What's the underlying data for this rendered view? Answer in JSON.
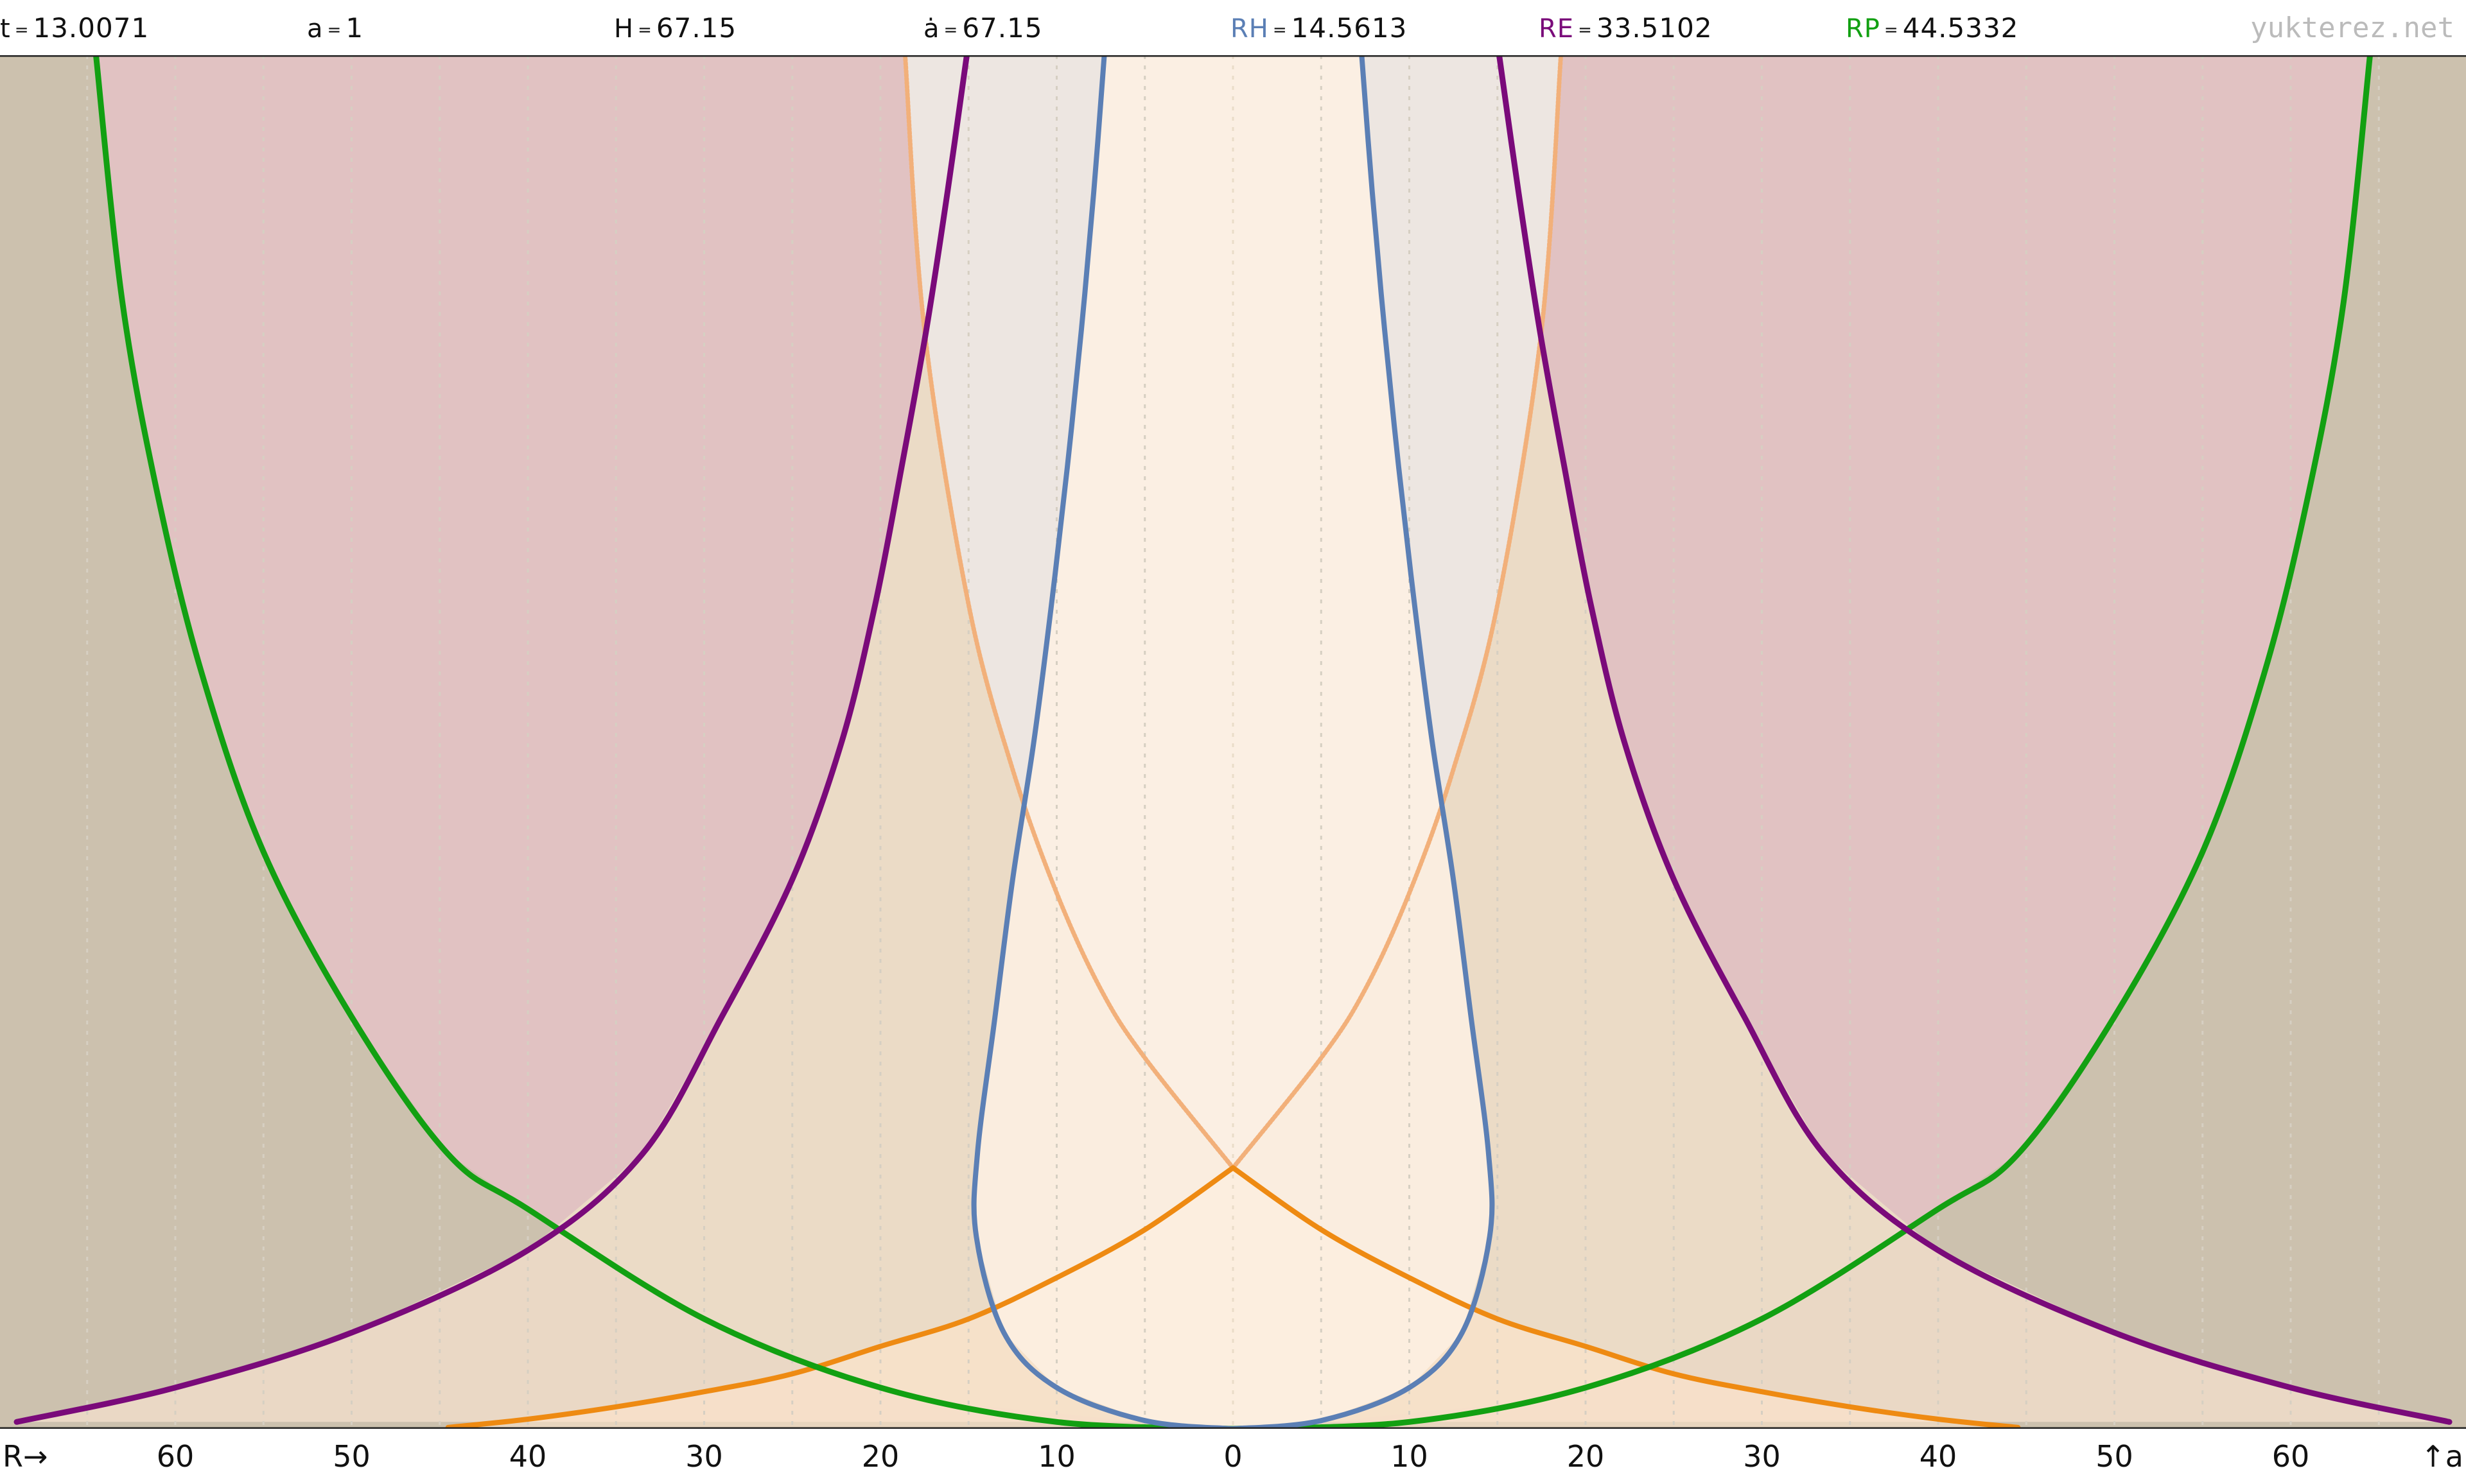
{
  "header": {
    "items": [
      {
        "label": "t",
        "value": "13.0071",
        "color": "#111111"
      },
      {
        "label": "a",
        "value": "1",
        "color": "#111111"
      },
      {
        "label": "H",
        "value": "67.15",
        "color": "#111111"
      },
      {
        "label": "ȧ",
        "value": "67.15",
        "color": "#111111"
      },
      {
        "label": "RH",
        "value": "14.5613",
        "color": "#5b7fb5"
      },
      {
        "label": "RE",
        "value": "33.5102",
        "color": "#7a0a7a"
      },
      {
        "label": "RP",
        "value": "44.5332",
        "color": "#12a012"
      }
    ],
    "eq_sign": "=",
    "site": "yukterez.net"
  },
  "axis": {
    "x_left_label": "R→",
    "y_label": "↑a",
    "ticks": [
      "60",
      "50",
      "40",
      "30",
      "20",
      "10",
      "0",
      "10",
      "20",
      "30",
      "40",
      "50",
      "60"
    ]
  },
  "chart_data": {
    "type": "line",
    "xlim": [
      -70,
      70
    ],
    "ylim": [
      0,
      1
    ],
    "grid": "vertical dotted every 5 units",
    "colors": {
      "hubble": "#5b7fb5",
      "event": "#7a0a7a",
      "particle": "#12a012",
      "lightcone": "#ee8a12",
      "lightcone_faint": "#f2b07a",
      "fill_outer": "#ccc1ae",
      "fill_event": "#e1c2c2",
      "fill_mid": "#eedcc9",
      "fill_lightcone": "#ffe5cc",
      "fill_inner": "#fdf0e3",
      "fill_green": "#d4d8b4",
      "fill_inner_gray": "#ede6e1"
    },
    "series": [
      {
        "key": "hubble",
        "points": [
          [
            0,
            0
          ],
          [
            5,
            0.006
          ],
          [
            10,
            0.03
          ],
          [
            13,
            0.07
          ],
          [
            14.56,
            0.14
          ],
          [
            14.5,
            0.2
          ],
          [
            13.5,
            0.3
          ],
          [
            12.5,
            0.4
          ],
          [
            11.3,
            0.5
          ],
          [
            10.3,
            0.6
          ],
          [
            9.4,
            0.7
          ],
          [
            8.6,
            0.8
          ],
          [
            7.9,
            0.9
          ],
          [
            7.3,
            1.0
          ]
        ]
      },
      {
        "key": "event",
        "points": [
          [
            69,
            0.005
          ],
          [
            60,
            0.03
          ],
          [
            50,
            0.07
          ],
          [
            40,
            0.13
          ],
          [
            33.51,
            0.2
          ],
          [
            29,
            0.3
          ],
          [
            25,
            0.4
          ],
          [
            22.2,
            0.5
          ],
          [
            20.3,
            0.6
          ],
          [
            18.8,
            0.7
          ],
          [
            17.4,
            0.8
          ],
          [
            16.2,
            0.9
          ],
          [
            15.1,
            1.0
          ]
        ]
      },
      {
        "key": "particle",
        "points": [
          [
            0,
            0
          ],
          [
            10,
            0.005
          ],
          [
            20,
            0.03
          ],
          [
            30,
            0.08
          ],
          [
            40,
            0.16
          ],
          [
            44.53,
            0.2
          ],
          [
            50,
            0.3
          ],
          [
            55,
            0.42
          ],
          [
            58.5,
            0.55
          ],
          [
            61,
            0.68
          ],
          [
            63,
            0.82
          ],
          [
            64.5,
            1.0
          ]
        ]
      },
      {
        "key": "lightcone",
        "points": [
          [
            0,
            0.19
          ],
          [
            5,
            0.145
          ],
          [
            10,
            0.11
          ],
          [
            15,
            0.08
          ],
          [
            20,
            0.06
          ],
          [
            25,
            0.04
          ],
          [
            30,
            0.027
          ],
          [
            35,
            0.016
          ],
          [
            40,
            0.007
          ],
          [
            44.53,
            0.001
          ]
        ]
      },
      {
        "key": "lightcone_upper",
        "points": [
          [
            0,
            0.19
          ],
          [
            5,
            0.27
          ],
          [
            7.5,
            0.32
          ],
          [
            10,
            0.39
          ],
          [
            12.5,
            0.48
          ],
          [
            15,
            0.6
          ],
          [
            17.5,
            0.8
          ],
          [
            18.6,
            1.0
          ]
        ]
      }
    ]
  }
}
